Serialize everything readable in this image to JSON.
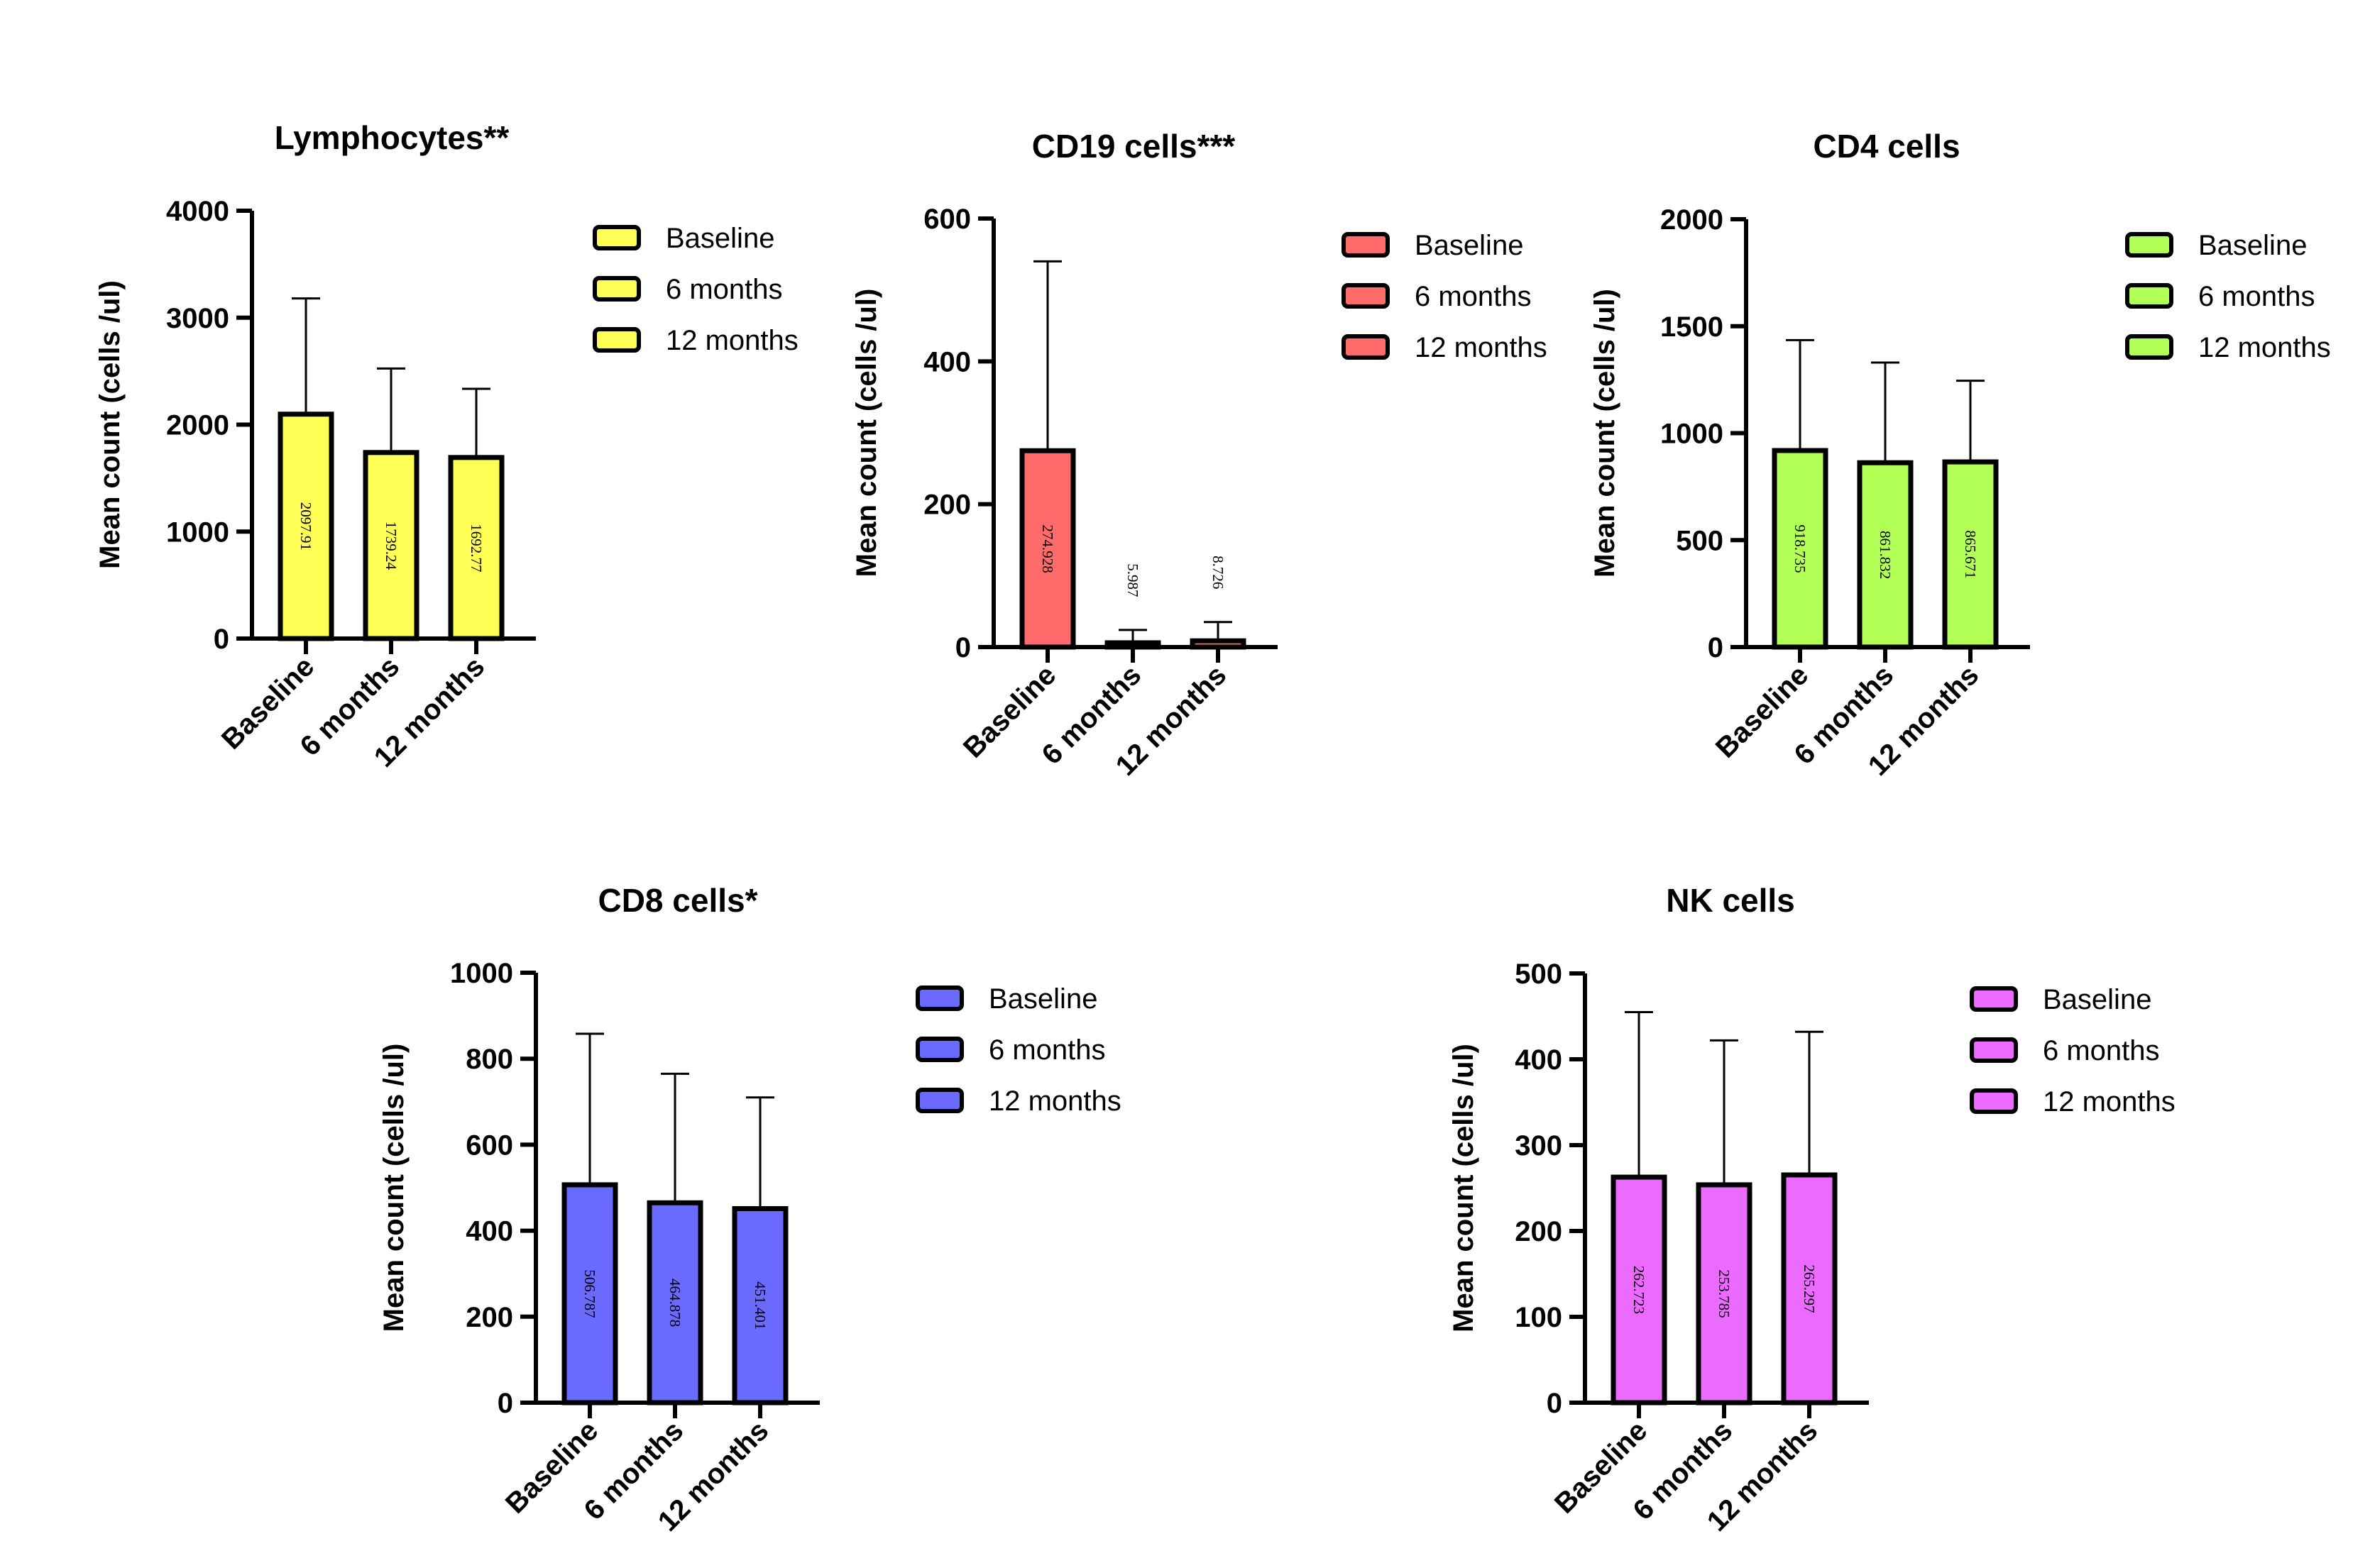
{
  "chart_data": [
    {
      "type": "bar",
      "title": "Lymphocytes**",
      "ylabel": "Mean count (cells /ul)",
      "categories": [
        "Baseline",
        "6 months",
        "12 months"
      ],
      "values": [
        2097.91,
        1739.24,
        1692.77
      ],
      "error_upper": [
        3180,
        2525,
        2335
      ],
      "value_labels": [
        "2097.91",
        "1739.24",
        "1692.77"
      ],
      "ylim": [
        0,
        4000
      ],
      "yticks": [
        0,
        1000,
        2000,
        3000,
        4000
      ],
      "color": "#FFFF55",
      "legend": [
        "Baseline",
        "6 months",
        "12 months"
      ],
      "legend_position": "right"
    },
    {
      "type": "bar",
      "title": "CD19 cells***",
      "ylabel": "Mean count (cells /ul)",
      "categories": [
        "Baseline",
        "6 months",
        "12 months"
      ],
      "values": [
        274.928,
        5.987,
        8.726
      ],
      "error_upper": [
        540,
        24,
        35
      ],
      "value_labels": [
        "274.928",
        "5.987",
        "8.726"
      ],
      "ylim": [
        0,
        600
      ],
      "yticks": [
        0,
        200,
        400,
        600
      ],
      "color": "#FF6A6A",
      "legend": [
        "Baseline",
        "6 months",
        "12 months"
      ],
      "legend_position": "right"
    },
    {
      "type": "bar",
      "title": "CD4 cells",
      "ylabel": "Mean count (cells /ul)",
      "categories": [
        "Baseline",
        "6 months",
        "12 months"
      ],
      "values": [
        918.735,
        861.832,
        865.671
      ],
      "error_upper": [
        1435,
        1330,
        1245
      ],
      "value_labels": [
        "918.735",
        "861.832",
        "865.671"
      ],
      "ylim": [
        0,
        2000
      ],
      "yticks": [
        0,
        500,
        1000,
        1500,
        2000
      ],
      "color": "#B2FF55",
      "legend": [
        "Baseline",
        "6 months",
        "12 months"
      ],
      "legend_position": "right"
    },
    {
      "type": "bar",
      "title": "CD8 cells*",
      "ylabel": "Mean count (cells /ul)",
      "categories": [
        "Baseline",
        "6 months",
        "12 months"
      ],
      "values": [
        506.787,
        464.878,
        451.401
      ],
      "error_upper": [
        858,
        765,
        710
      ],
      "value_labels": [
        "506.787",
        "464.878",
        "451.401"
      ],
      "ylim": [
        0,
        1000
      ],
      "yticks": [
        0,
        200,
        400,
        600,
        800,
        1000
      ],
      "color": "#6A6AFF",
      "legend": [
        "Baseline",
        "6 months",
        "12 months"
      ],
      "legend_position": "right"
    },
    {
      "type": "bar",
      "title": "NK cells",
      "ylabel": "Mean count (cells /ul)",
      "categories": [
        "Baseline",
        "6 months",
        "12 months"
      ],
      "values": [
        262.723,
        253.785,
        265.297
      ],
      "error_upper": [
        455,
        422,
        432
      ],
      "value_labels": [
        "262.723",
        "253.785",
        "265.297"
      ],
      "ylim": [
        0,
        500
      ],
      "yticks": [
        0,
        100,
        200,
        300,
        400,
        500
      ],
      "color": "#EB6AFF",
      "legend": [
        "Baseline",
        "6 months",
        "12 months"
      ],
      "legend_position": "right"
    }
  ]
}
